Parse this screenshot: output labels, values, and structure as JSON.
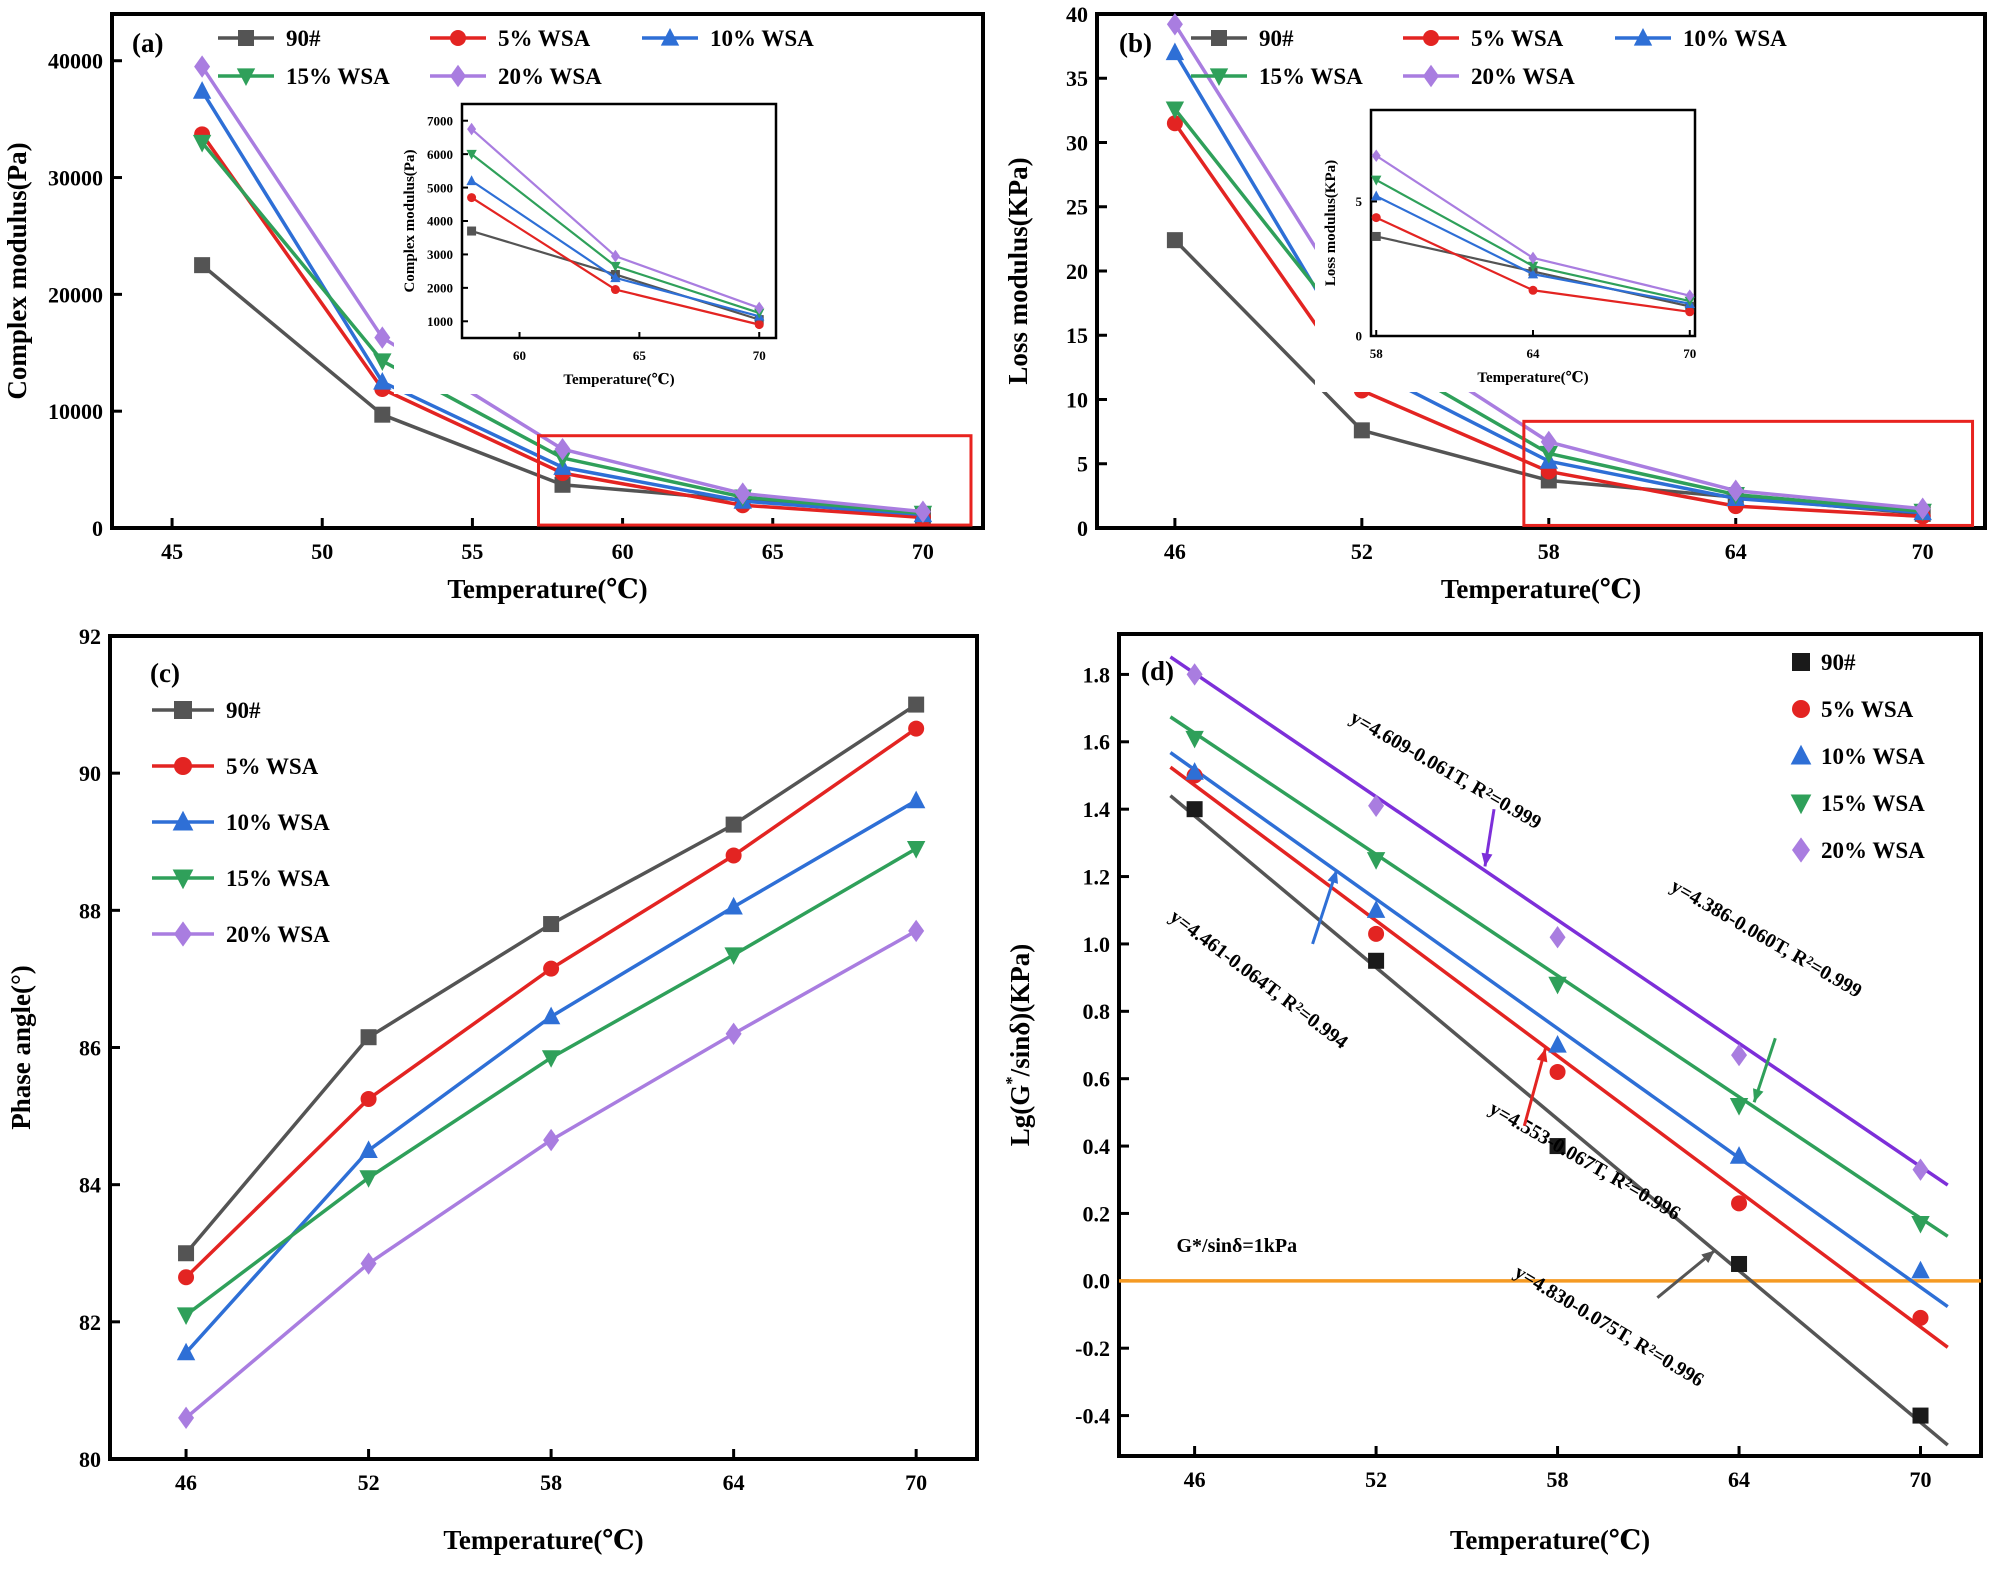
{
  "figure": {
    "description": "Four-panel rheology figure",
    "panels": [
      "(a)",
      "(b)",
      "(c)",
      "(d)"
    ]
  },
  "colors": {
    "90#": "#545454",
    "5% WSA": "#e32422",
    "10% WSA": "#2e6fd6",
    "15% WSA": "#2fa05a",
    "20% WSA": "#a97de0",
    "zoom_box": "#e8231f",
    "iso_line": "#f59a23"
  },
  "chart_data": [
    {
      "id": "a",
      "type": "line",
      "panel_label": "(a)",
      "xlabel": "Temperature(℃)",
      "ylabel": "Complex modulus(Pa)",
      "legend_position": "top",
      "x": [
        46,
        52,
        58,
        64,
        70
      ],
      "xlim": [
        43,
        72
      ],
      "ylim": [
        0,
        44000
      ],
      "xticks": [
        45,
        50,
        55,
        60,
        65,
        70
      ],
      "yticks": [
        0,
        10000,
        20000,
        30000,
        40000
      ],
      "series": [
        {
          "name": "90#",
          "marker": "square",
          "color": "#545454",
          "values": [
            22500,
            9700,
            3700,
            2400,
            1050
          ]
        },
        {
          "name": "5% WSA",
          "marker": "circle",
          "color": "#e32422",
          "values": [
            33700,
            11900,
            4700,
            1950,
            900
          ]
        },
        {
          "name": "10% WSA",
          "marker": "triangle-up",
          "color": "#2e6fd6",
          "values": [
            37400,
            12500,
            5200,
            2300,
            1150
          ]
        },
        {
          "name": "15% WSA",
          "marker": "triangle-down",
          "color": "#2fa05a",
          "values": [
            33000,
            14300,
            6000,
            2650,
            1250
          ]
        },
        {
          "name": "20% WSA",
          "marker": "diamond",
          "color": "#a97de0",
          "values": [
            39500,
            16300,
            6750,
            2950,
            1400
          ]
        }
      ],
      "zoom_rect": {
        "x0": 57.2,
        "x1": 71.6,
        "y0": 250,
        "y1": 7900,
        "color": "#e8231f"
      },
      "inset": {
        "xlabel": "Temperature(℃)",
        "ylabel": "Complex modulus(Pa)",
        "x": [
          58,
          64,
          70
        ],
        "xlim": [
          57.6,
          70.7
        ],
        "ylim": [
          500,
          7500
        ],
        "xticks": [
          60,
          65,
          70
        ],
        "yticks": [
          1000,
          2000,
          3000,
          4000,
          5000,
          6000,
          7000
        ]
      }
    },
    {
      "id": "b",
      "type": "line",
      "panel_label": "(b)",
      "xlabel": "Temperature(℃)",
      "ylabel": "Loss modulus(KPa)",
      "legend_position": "top",
      "x": [
        46,
        52,
        58,
        64,
        70
      ],
      "xlim": [
        43.5,
        72
      ],
      "ylim": [
        0,
        40
      ],
      "xticks": [
        46,
        52,
        58,
        64,
        70
      ],
      "yticks": [
        0,
        5,
        10,
        15,
        20,
        25,
        30,
        35,
        40
      ],
      "series": [
        {
          "name": "90#",
          "marker": "square",
          "color": "#545454",
          "values": [
            22.4,
            7.6,
            3.7,
            2.4,
            1.1
          ]
        },
        {
          "name": "5% WSA",
          "marker": "circle",
          "color": "#e32422",
          "values": [
            31.5,
            10.7,
            4.4,
            1.7,
            0.9
          ]
        },
        {
          "name": "10% WSA",
          "marker": "triangle-up",
          "color": "#2e6fd6",
          "values": [
            37.0,
            12.6,
            5.2,
            2.3,
            1.2
          ]
        },
        {
          "name": "15% WSA",
          "marker": "triangle-down",
          "color": "#2fa05a",
          "values": [
            32.6,
            14.2,
            5.8,
            2.6,
            1.3
          ]
        },
        {
          "name": "20% WSA",
          "marker": "diamond",
          "color": "#a97de0",
          "values": [
            39.2,
            16.1,
            6.7,
            2.9,
            1.5
          ]
        }
      ],
      "zoom_rect": {
        "x0": 57.2,
        "x1": 71.6,
        "y0": 0.2,
        "y1": 8.3,
        "color": "#e8231f"
      },
      "inset": {
        "xlabel": "Temperature(℃)",
        "ylabel": "Loss modulus(KPa)",
        "x": [
          58,
          64,
          70
        ],
        "xlim": [
          57.8,
          70.2
        ],
        "ylim": [
          0,
          8.4
        ],
        "xticks": [
          58,
          64,
          70
        ],
        "yticks": [
          0,
          5
        ]
      }
    },
    {
      "id": "c",
      "type": "line",
      "panel_label": "(c)",
      "xlabel": "Temperature(℃)",
      "ylabel": "Phase angle(°)",
      "legend_position": "top-left",
      "x": [
        46,
        52,
        58,
        64,
        70
      ],
      "xlim": [
        43.5,
        72
      ],
      "ylim": [
        80,
        92
      ],
      "xticks": [
        46,
        52,
        58,
        64,
        70
      ],
      "yticks": [
        80,
        82,
        84,
        86,
        88,
        90,
        92
      ],
      "series": [
        {
          "name": "90#",
          "marker": "square",
          "color": "#545454",
          "values": [
            83.0,
            86.15,
            87.8,
            89.25,
            91.0
          ]
        },
        {
          "name": "5% WSA",
          "marker": "circle",
          "color": "#e32422",
          "values": [
            82.65,
            85.25,
            87.15,
            88.8,
            90.65
          ]
        },
        {
          "name": "10% WSA",
          "marker": "triangle-up",
          "color": "#2e6fd6",
          "values": [
            81.55,
            84.5,
            86.45,
            88.05,
            89.6
          ]
        },
        {
          "name": "15% WSA",
          "marker": "triangle-down",
          "color": "#2fa05a",
          "values": [
            82.1,
            84.1,
            85.85,
            87.35,
            88.9
          ]
        },
        {
          "name": "20% WSA",
          "marker": "diamond",
          "color": "#a97de0",
          "values": [
            80.6,
            82.85,
            84.65,
            86.2,
            87.7
          ]
        }
      ]
    },
    {
      "id": "d",
      "type": "scatter",
      "panel_label": "(d)",
      "xlabel": "Temperature(℃)",
      "ylabel_rich": [
        {
          "t": "Lg(G"
        },
        {
          "t": "*",
          "sup": true
        },
        {
          "t": "/sinδ)(KPa)"
        }
      ],
      "legend_position": "top-right",
      "x": [
        46,
        52,
        58,
        64,
        70
      ],
      "xlim": [
        43.5,
        72
      ],
      "ylim": [
        -0.52,
        1.92
      ],
      "xticks": [
        46,
        52,
        58,
        64,
        70
      ],
      "yticks": [
        -0.4,
        -0.2,
        0.0,
        0.2,
        0.4,
        0.6,
        0.8,
        1.0,
        1.2,
        1.4,
        1.6,
        1.8
      ],
      "fit_range": [
        45.2,
        70.9
      ],
      "series": [
        {
          "name": "90#",
          "marker": "square",
          "color": "#1a1a1a",
          "line": false,
          "values": [
            1.4,
            0.95,
            0.4,
            0.05,
            -0.4
          ],
          "fit": {
            "eq": "y=4.830-0.075T, R²=0.996",
            "a": 4.83,
            "b": 0.075,
            "line_color": "#555555"
          }
        },
        {
          "name": "5% WSA",
          "marker": "circle",
          "color": "#e32422",
          "line": false,
          "values": [
            1.5,
            1.03,
            0.62,
            0.23,
            -0.11
          ],
          "fit": {
            "eq": "y=4.553-0.067T, R²=0.996",
            "a": 4.553,
            "b": 0.067,
            "line_color": "#e32422"
          }
        },
        {
          "name": "10% WSA",
          "marker": "triangle-up",
          "color": "#2e6fd6",
          "line": false,
          "values": [
            1.51,
            1.1,
            0.7,
            0.37,
            0.03
          ],
          "fit": {
            "eq": "y=4.461-0.064T, R²=0.994",
            "a": 4.461,
            "b": 0.064,
            "line_color": "#2e6fd6"
          }
        },
        {
          "name": "15% WSA",
          "marker": "triangle-down",
          "color": "#2fa05a",
          "line": false,
          "values": [
            1.61,
            1.25,
            0.88,
            0.52,
            0.17
          ],
          "fit": {
            "eq": "y=4.386-0.060T, R²=0.999",
            "a": 4.386,
            "b": 0.06,
            "line_color": "#2fa05a"
          }
        },
        {
          "name": "20% WSA",
          "marker": "diamond",
          "color": "#a97de0",
          "line": false,
          "values": [
            1.8,
            1.41,
            1.02,
            0.67,
            0.33
          ],
          "fit": {
            "eq": "y=4.609-0.061T, R²=0.999",
            "a": 4.609,
            "b": 0.061,
            "line_color": "#7d2fd9"
          }
        }
      ],
      "hline": {
        "y": 0.0,
        "label": "G*/sinδ=1kPa",
        "color": "#f59a23"
      }
    }
  ]
}
